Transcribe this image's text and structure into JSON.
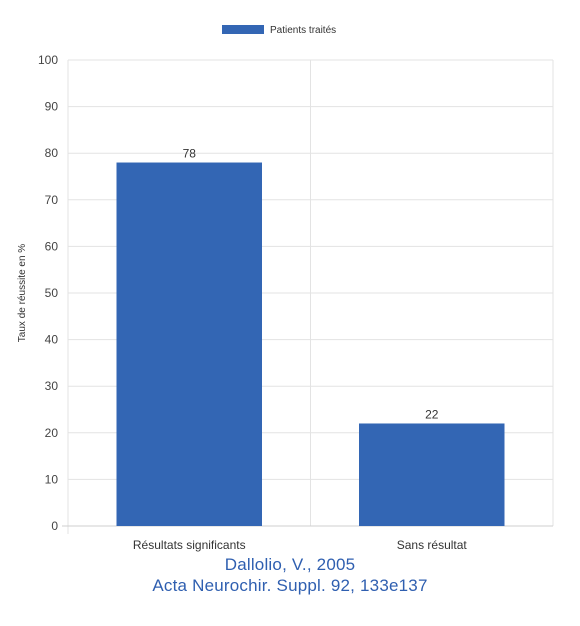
{
  "chart_data": {
    "type": "bar",
    "categories": [
      "Résultats significants",
      "Sans résultat"
    ],
    "series": [
      {
        "name": "Patients traités",
        "values": [
          78,
          22
        ]
      }
    ],
    "ylabel": "Taux de réussite en %",
    "xlabel": "",
    "ylim": [
      0,
      100
    ],
    "yticks": [
      0,
      10,
      20,
      30,
      40,
      50,
      60,
      70,
      80,
      90,
      100
    ],
    "grid": true,
    "legend": "top-center",
    "data_labels": true,
    "bar_color": "#3366b4"
  },
  "caption": {
    "line1": "Dallolio, V., 2005",
    "line2": "Acta Neurochir. Suppl. 92, 133e137"
  }
}
